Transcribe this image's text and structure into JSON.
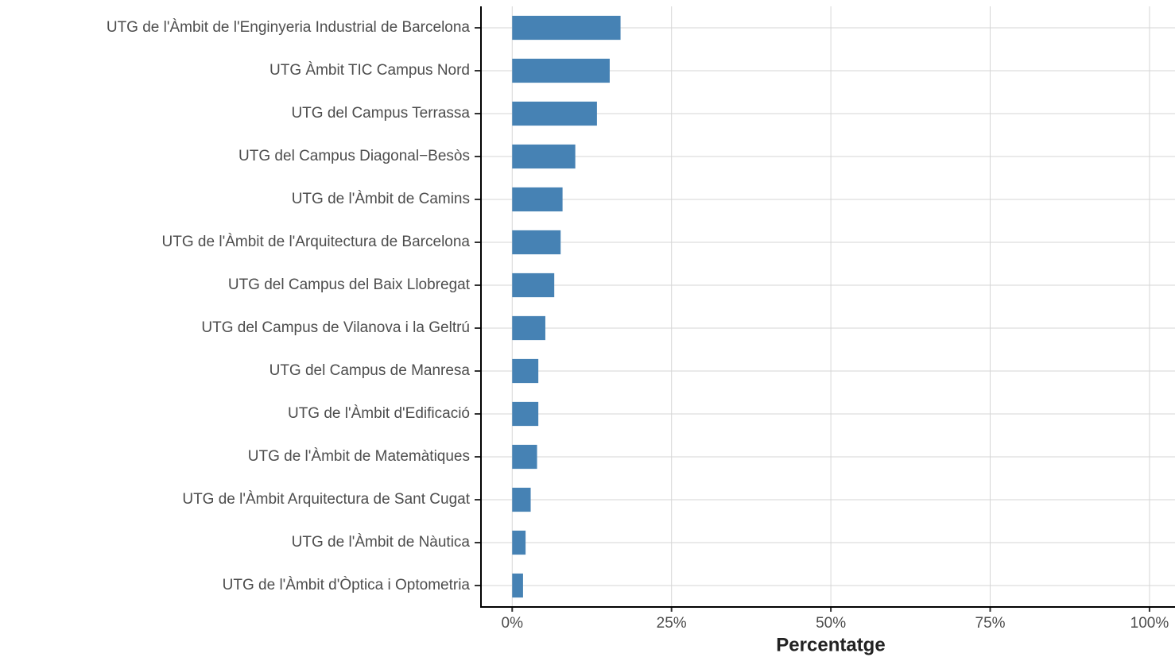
{
  "chart_data": {
    "type": "bar",
    "orientation": "horizontal",
    "categories": [
      "UTG de l'Àmbit de l'Enginyeria Industrial de Barcelona",
      "UTG Àmbit TIC Campus Nord",
      "UTG del Campus Terrassa",
      "UTG del Campus Diagonal−Besòs",
      "UTG de l'Àmbit de Camins",
      "UTG de l'Àmbit de l'Arquitectura de Barcelona",
      "UTG del Campus del Baix Llobregat",
      "UTG del Campus de Vilanova i la Geltrú",
      "UTG del Campus de Manresa",
      "UTG de l'Àmbit d'Edificació",
      "UTG de l'Àmbit de Matemàtiques",
      "UTG de l'Àmbit Arquitectura de Sant Cugat",
      "UTG de l'Àmbit de Nàutica",
      "UTG de l'Àmbit d'Òptica i Optometria"
    ],
    "values": [
      17.0,
      15.3,
      13.3,
      9.9,
      7.9,
      7.6,
      6.6,
      5.2,
      4.1,
      4.1,
      3.9,
      2.9,
      2.1,
      1.7
    ],
    "color": "#4682b4",
    "xlabel": "Percentatge",
    "xlim": [
      -4.9,
      104
    ],
    "xticks": [
      {
        "value": 0,
        "label": "0%"
      },
      {
        "value": 25,
        "label": "25%"
      },
      {
        "value": 50,
        "label": "50%"
      },
      {
        "value": 75,
        "label": "75%"
      },
      {
        "value": 100,
        "label": "100%"
      }
    ],
    "grid": true
  }
}
